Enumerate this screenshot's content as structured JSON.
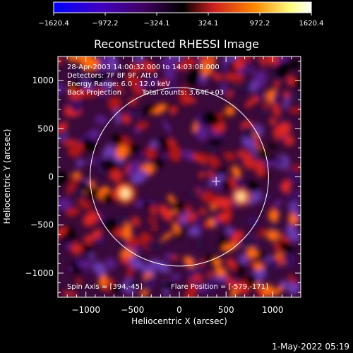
{
  "chart_data": {
    "type": "heatmap",
    "title": "Reconstructed RHESSI Image",
    "xlabel": "Heliocentric X (arcsec)",
    "ylabel": "Heliocentric Y (arcsec)",
    "xlim": [
      -1300,
      1300
    ],
    "ylim": [
      -1250,
      1250
    ],
    "xticks": [
      -1000,
      -500,
      0,
      500,
      1000
    ],
    "yticks": [
      -1000,
      -500,
      0,
      500,
      1000
    ],
    "xtick_labels": [
      "−1000",
      "−500",
      "0",
      "500",
      "1000"
    ],
    "ytick_labels": [
      "−1000",
      "−500",
      "0",
      "500",
      "1000"
    ],
    "colorbar": {
      "min": -1620.4,
      "max": 1620.4,
      "ticks": [
        -1620.4,
        -972.2,
        -324.1,
        324.1,
        972.2,
        1620.4
      ],
      "tick_labels": [
        "−1620.4",
        "−972.2",
        "−324.1",
        "324.1",
        "972.2",
        "1620.4"
      ],
      "colormap": [
        "#0000ff",
        "#4000c0",
        "#400060",
        "#000000",
        "#cc2020",
        "#ff8800",
        "#ffff80",
        "#ffffff"
      ]
    },
    "annotations": [
      "28-Apr-2003 14:00:32.000 to 14:03:08.000",
      "Detectors: 7F 8F 9F, Att 0",
      "Energy Range: 6.0 - 12.0 keV",
      "Back Projection",
      "Total counts: 3.64E+03"
    ],
    "spin_axis_label": "Spin Axis = [394,-45]",
    "flare_position_label": "Flare Position = [-579,-171]",
    "solar_limb": {
      "center": [
        0,
        0
      ],
      "radius_arcsec": 955
    },
    "spin_axis_marker": [
      394,
      -45
    ],
    "bright_sources": [
      {
        "x": -579,
        "y": -171,
        "value": 1620
      },
      {
        "x": 660,
        "y": -205,
        "value": 1450
      }
    ],
    "grid": false
  },
  "footer_timestamp": "1-May-2022 05:19"
}
